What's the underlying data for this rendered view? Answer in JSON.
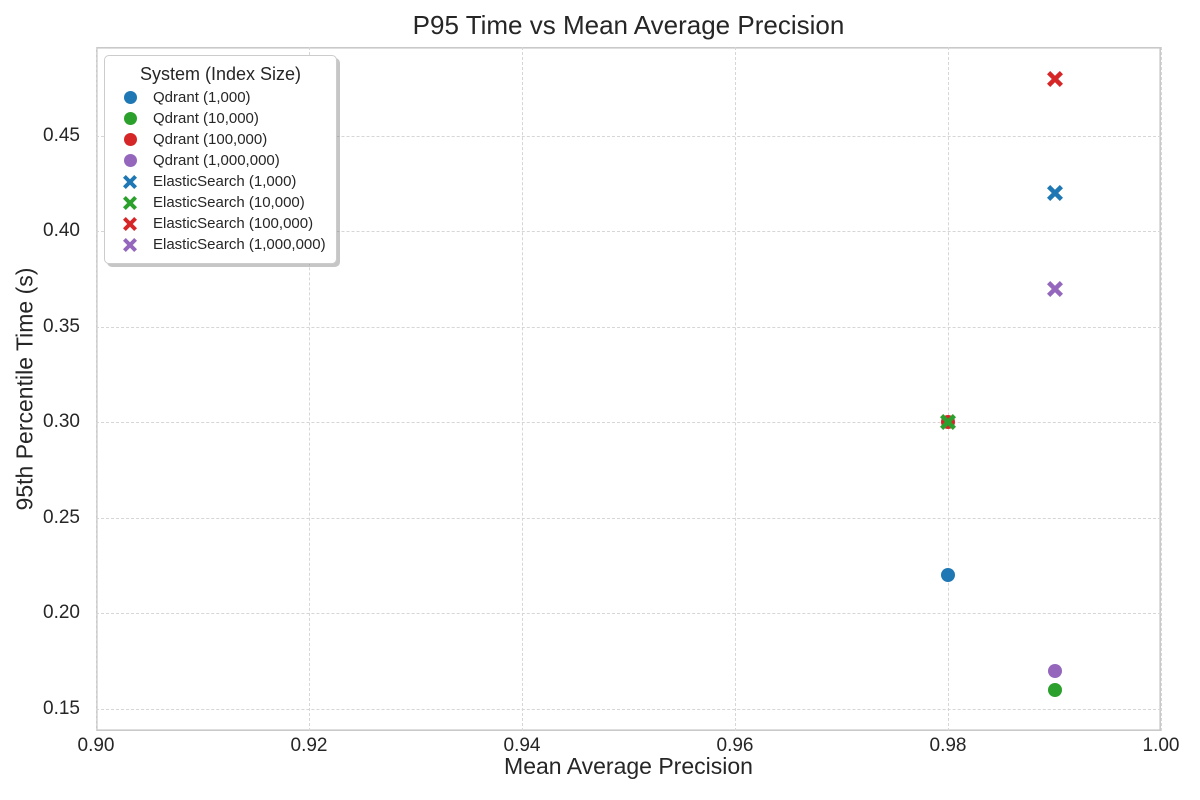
{
  "chart_data": {
    "type": "scatter",
    "title": "P95 Time vs Mean Average Precision",
    "xlabel": "Mean Average Precision",
    "ylabel": "95th Percentile Time (s)",
    "xlim": [
      0.9,
      1.0
    ],
    "ylim": [
      0.1385,
      0.4965
    ],
    "xticks": [
      "0.90",
      "0.92",
      "0.94",
      "0.96",
      "0.98",
      "1.00"
    ],
    "yticks": [
      "0.15",
      "0.20",
      "0.25",
      "0.30",
      "0.35",
      "0.40",
      "0.45"
    ],
    "grid": "dashed",
    "legend_title": "System (Index Size)",
    "legend_position": "upper left",
    "series": [
      {
        "name": "Qdrant (1,000)",
        "marker": "circle",
        "color": "#1f77b4",
        "points": [
          [
            0.98,
            0.22
          ]
        ]
      },
      {
        "name": "Qdrant (10,000)",
        "marker": "circle",
        "color": "#2ca02c",
        "points": [
          [
            0.99,
            0.16
          ]
        ]
      },
      {
        "name": "Qdrant (100,000)",
        "marker": "circle",
        "color": "#d62728",
        "points": [
          [
            0.98,
            0.3
          ]
        ]
      },
      {
        "name": "Qdrant (1,000,000)",
        "marker": "circle",
        "color": "#9467bd",
        "points": [
          [
            0.99,
            0.17
          ]
        ]
      },
      {
        "name": "ElasticSearch (1,000)",
        "marker": "x",
        "color": "#1f77b4",
        "points": [
          [
            0.99,
            0.42
          ]
        ]
      },
      {
        "name": "ElasticSearch (10,000)",
        "marker": "x",
        "color": "#2ca02c",
        "points": [
          [
            0.98,
            0.3
          ]
        ]
      },
      {
        "name": "ElasticSearch (100,000)",
        "marker": "x",
        "color": "#d62728",
        "points": [
          [
            0.99,
            0.48
          ]
        ]
      },
      {
        "name": "ElasticSearch (1,000,000)",
        "marker": "x",
        "color": "#9467bd",
        "points": [
          [
            0.99,
            0.37
          ]
        ]
      }
    ]
  }
}
